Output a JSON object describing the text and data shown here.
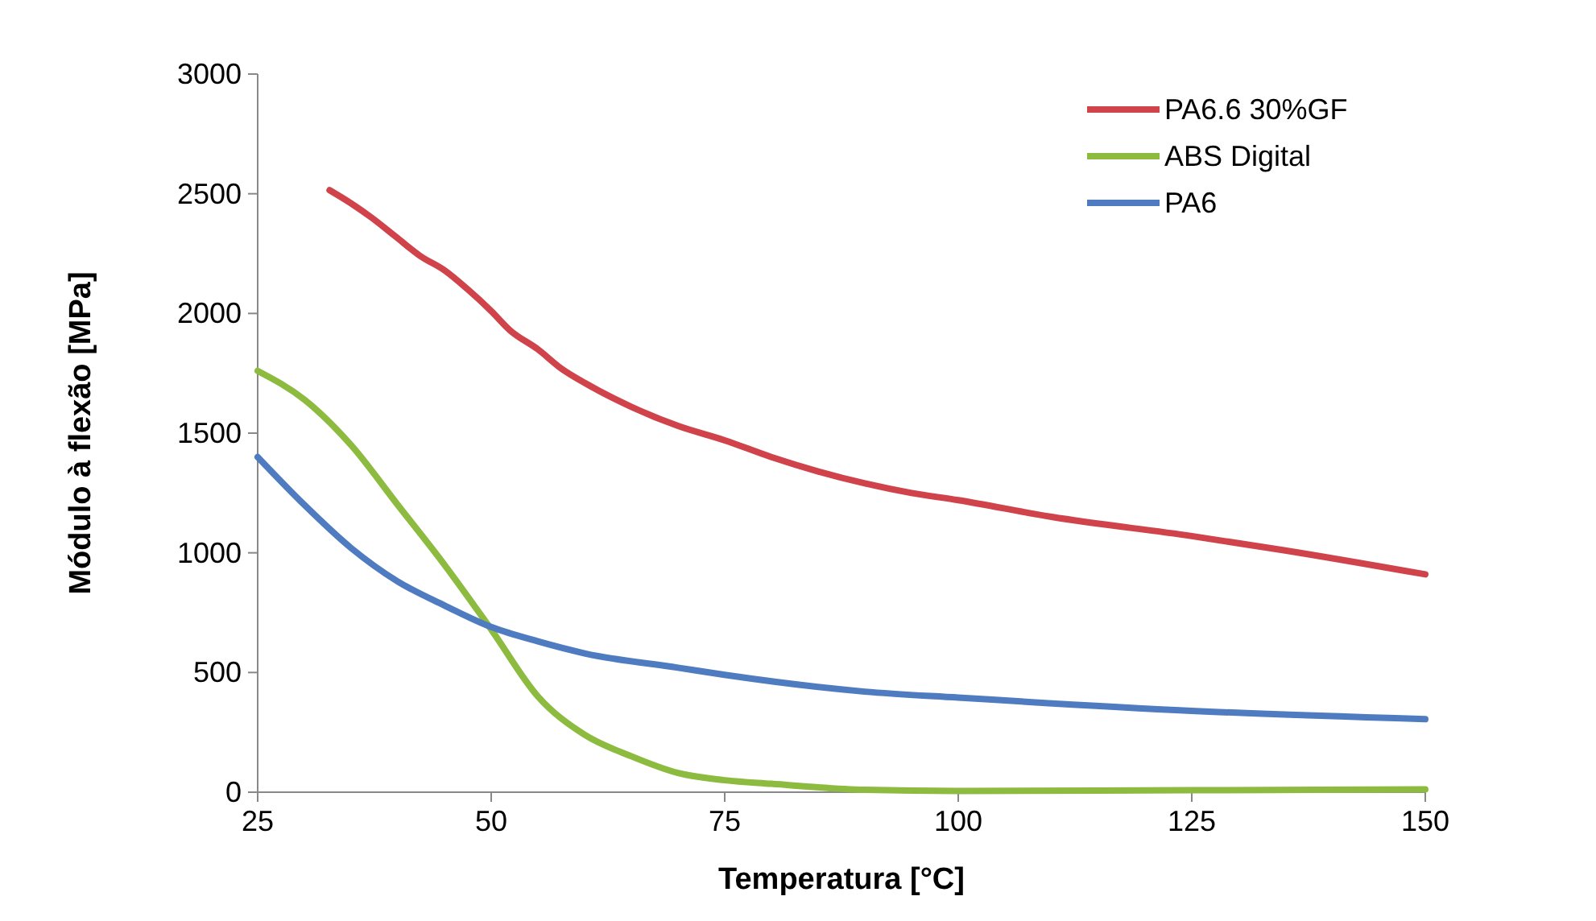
{
  "chart_data": {
    "type": "line",
    "xlabel": "Temperatura [°C]",
    "ylabel": "Módulo à flexão [MPa]",
    "xlim": [
      25,
      150
    ],
    "xticks": [
      25,
      50,
      75,
      100,
      125,
      150
    ],
    "ylim": [
      0,
      3000
    ],
    "yticks": [
      0,
      500,
      1000,
      1500,
      2000,
      2500,
      3000
    ],
    "grid": false,
    "legend": "top right",
    "marker": "none",
    "line_style": "solid",
    "series": [
      {
        "name": "PA6.6 30%GF",
        "color": "#d0434a",
        "x": [
          32.7,
          35,
          37.2,
          39.8,
          42.4,
          45,
          47.5,
          50,
          52,
          55,
          57.5,
          60,
          65,
          70,
          75,
          80,
          85,
          90,
          95,
          100,
          110,
          125,
          135,
          150
        ],
        "values": [
          2515,
          2460,
          2400,
          2320,
          2240,
          2180,
          2100,
          2010,
          1930,
          1850,
          1770,
          1710,
          1610,
          1530,
          1470,
          1400,
          1340,
          1290,
          1250,
          1220,
          1150,
          1070,
          1010,
          910
        ]
      },
      {
        "name": "ABS Digital",
        "color": "#8dbb3f",
        "x": [
          25,
          30,
          35,
          40,
          45,
          50,
          55,
          60,
          65,
          70,
          75,
          80,
          90,
          100,
          125,
          150
        ],
        "values": [
          1760,
          1640,
          1450,
          1200,
          950,
          680,
          400,
          240,
          150,
          80,
          50,
          35,
          10,
          5,
          8,
          12
        ]
      },
      {
        "name": "PA6",
        "color": "#4f7cc0",
        "x": [
          25,
          30,
          35,
          40,
          45,
          50,
          55,
          60,
          70,
          75,
          90,
          100,
          125,
          150
        ],
        "values": [
          1400,
          1200,
          1020,
          880,
          780,
          690,
          630,
          580,
          520,
          490,
          420,
          395,
          340,
          305
        ]
      }
    ]
  }
}
